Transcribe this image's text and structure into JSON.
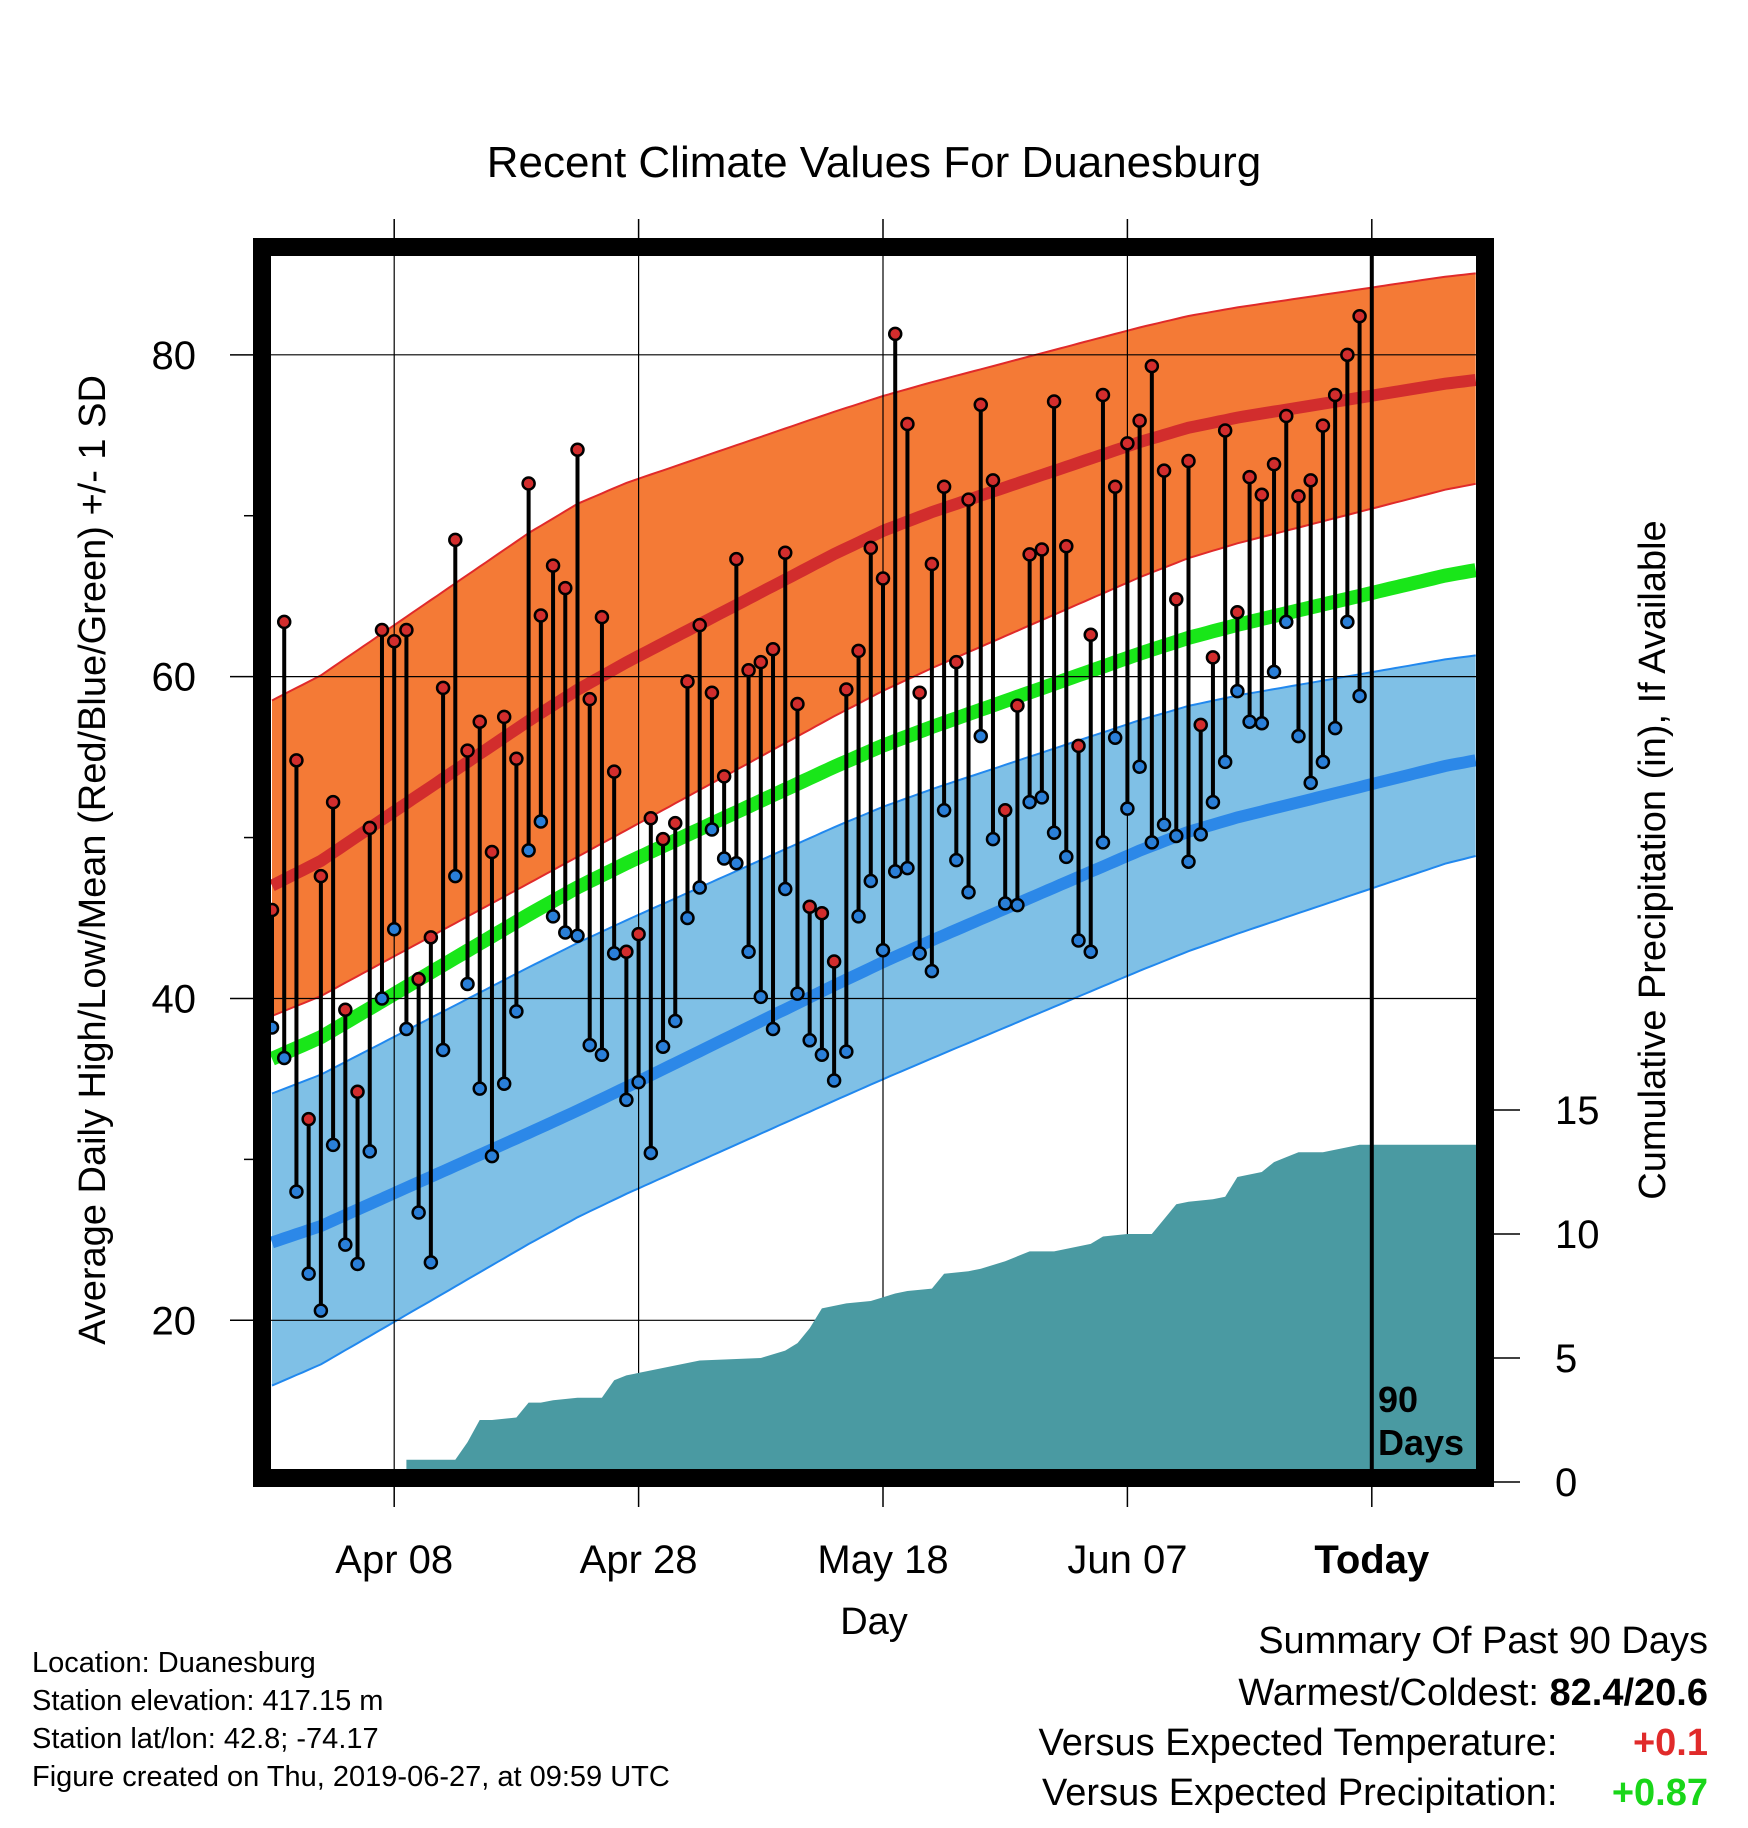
{
  "chart_data": {
    "type": "line",
    "title": "Recent Climate Values For Duanesburg",
    "xlabel": "Day",
    "ylabel": "Average Daily High/Low/Mean (Red/Blue/Green) +/- 1 SD",
    "y2label": "Cumulative Precipitation (in), If Available",
    "xticks": [
      {
        "day": 10,
        "label": "Apr 08"
      },
      {
        "day": 30,
        "label": "Apr 28"
      },
      {
        "day": 50,
        "label": "May 18"
      },
      {
        "day": 70,
        "label": "Jun 07"
      },
      {
        "day": 90,
        "label": "Today"
      }
    ],
    "yticks": [
      20,
      40,
      60,
      80
    ],
    "y2ticks": [
      0,
      5,
      10,
      15
    ],
    "ylim": [
      10.2,
      86.7
    ],
    "y2lim": [
      0,
      15
    ],
    "xlim": [
      0,
      100
    ],
    "today_day": 90,
    "today_label_line1": "90",
    "today_label_line2": "Days",
    "colors": {
      "high_band": "#f47a36",
      "high_mean": "#d22d2d",
      "high_edge": "#e02a2a",
      "low_band": "#7fc0e6",
      "low_mean": "#2c88e8",
      "low_edge": "#2188ee",
      "mean": "#19e619",
      "precip": "#4a9aa2",
      "high_point": "#d22d2d",
      "low_point": "#2a7fd8"
    },
    "normal_high": {
      "day": [
        0,
        25,
        50,
        75,
        100
      ],
      "values": [
        46.5,
        59.3,
        69.2,
        75.6,
        78.7
      ]
    },
    "normal_high_upper": {
      "day": [
        0,
        25,
        50,
        75,
        100
      ],
      "values": [
        58.0,
        71.0,
        77.5,
        82.5,
        85.3
      ]
    },
    "normal_high_lower": {
      "day": [
        0,
        25,
        50,
        75,
        100
      ],
      "values": [
        38.5,
        48.8,
        59.2,
        67.5,
        72.4
      ]
    },
    "normal_mean": {
      "day": [
        0,
        25,
        50,
        75,
        100
      ],
      "values": [
        35.8,
        47.0,
        55.8,
        62.5,
        67.0
      ]
    },
    "normal_low": {
      "day": [
        0,
        25,
        50,
        75,
        100
      ],
      "values": [
        24.5,
        33.0,
        42.3,
        50.5,
        55.2
      ]
    },
    "normal_low_upper": {
      "day": [
        0,
        25,
        50,
        75,
        100
      ],
      "values": [
        33.7,
        43.5,
        52.0,
        58.3,
        61.6
      ]
    },
    "normal_low_lower": {
      "day": [
        0,
        25,
        50,
        75,
        100
      ],
      "values": [
        15.5,
        26.5,
        35.0,
        43.0,
        49.4
      ]
    },
    "daily": [
      {
        "day": 0,
        "high": 45.5,
        "low": 38.2
      },
      {
        "day": 1,
        "high": 63.4,
        "low": 36.3
      },
      {
        "day": 2,
        "high": 54.8,
        "low": 28.0
      },
      {
        "day": 3,
        "high": 32.5,
        "low": 22.9
      },
      {
        "day": 4,
        "high": 47.6,
        "low": 20.6
      },
      {
        "day": 5,
        "high": 52.2,
        "low": 30.9
      },
      {
        "day": 6,
        "high": 39.3,
        "low": 24.7
      },
      {
        "day": 7,
        "high": 34.2,
        "low": 23.5
      },
      {
        "day": 8,
        "high": 50.6,
        "low": 30.5
      },
      {
        "day": 9,
        "high": 62.9,
        "low": 40.0
      },
      {
        "day": 10,
        "high": 62.2,
        "low": 44.3
      },
      {
        "day": 11,
        "high": 62.9,
        "low": 38.1
      },
      {
        "day": 12,
        "high": 41.2,
        "low": 26.7
      },
      {
        "day": 13,
        "high": 43.8,
        "low": 23.6
      },
      {
        "day": 14,
        "high": 59.3,
        "low": 36.8
      },
      {
        "day": 15,
        "high": 68.5,
        "low": 47.6
      },
      {
        "day": 16,
        "high": 55.4,
        "low": 40.9
      },
      {
        "day": 17,
        "high": 57.2,
        "low": 34.4
      },
      {
        "day": 18,
        "high": 49.1,
        "low": 30.2
      },
      {
        "day": 19,
        "high": 57.5,
        "low": 34.7
      },
      {
        "day": 20,
        "high": 54.9,
        "low": 39.2
      },
      {
        "day": 21,
        "high": 72.0,
        "low": 49.2
      },
      {
        "day": 22,
        "high": 63.8,
        "low": 51.0
      },
      {
        "day": 23,
        "high": 66.9,
        "low": 45.1
      },
      {
        "day": 24,
        "high": 65.5,
        "low": 44.1
      },
      {
        "day": 25,
        "high": 74.1,
        "low": 43.9
      },
      {
        "day": 26,
        "high": 58.6,
        "low": 37.1
      },
      {
        "day": 27,
        "high": 63.7,
        "low": 36.5
      },
      {
        "day": 28,
        "high": 54.1,
        "low": 42.8
      },
      {
        "day": 29,
        "high": 42.9,
        "low": 33.7
      },
      {
        "day": 30,
        "high": 44.0,
        "low": 34.8
      },
      {
        "day": 31,
        "high": 51.2,
        "low": 30.4
      },
      {
        "day": 32,
        "high": 49.9,
        "low": 37.0
      },
      {
        "day": 33,
        "high": 50.9,
        "low": 38.6
      },
      {
        "day": 34,
        "high": 59.7,
        "low": 45.0
      },
      {
        "day": 35,
        "high": 63.2,
        "low": 46.9
      },
      {
        "day": 36,
        "high": 59.0,
        "low": 50.5
      },
      {
        "day": 37,
        "high": 53.8,
        "low": 48.7
      },
      {
        "day": 38,
        "high": 67.3,
        "low": 48.4
      },
      {
        "day": 39,
        "high": 60.4,
        "low": 42.9
      },
      {
        "day": 40,
        "high": 60.9,
        "low": 40.1
      },
      {
        "day": 41,
        "high": 61.7,
        "low": 38.1
      },
      {
        "day": 42,
        "high": 67.7,
        "low": 46.8
      },
      {
        "day": 43,
        "high": 58.3,
        "low": 40.3
      },
      {
        "day": 44,
        "high": 45.7,
        "low": 37.4
      },
      {
        "day": 45,
        "high": 45.3,
        "low": 36.5
      },
      {
        "day": 46,
        "high": 42.3,
        "low": 34.9
      },
      {
        "day": 47,
        "high": 59.2,
        "low": 36.7
      },
      {
        "day": 48,
        "high": 61.6,
        "low": 45.1
      },
      {
        "day": 49,
        "high": 68.0,
        "low": 47.3
      },
      {
        "day": 50,
        "high": 66.1,
        "low": 43.0
      },
      {
        "day": 51,
        "high": 81.3,
        "low": 47.9
      },
      {
        "day": 52,
        "high": 75.7,
        "low": 48.1
      },
      {
        "day": 53,
        "high": 59.0,
        "low": 42.8
      },
      {
        "day": 54,
        "high": 67.0,
        "low": 41.7
      },
      {
        "day": 55,
        "high": 71.8,
        "low": 51.7
      },
      {
        "day": 56,
        "high": 60.9,
        "low": 48.6
      },
      {
        "day": 57,
        "high": 71.0,
        "low": 46.6
      },
      {
        "day": 58,
        "high": 76.9,
        "low": 56.3
      },
      {
        "day": 59,
        "high": 72.2,
        "low": 49.9
      },
      {
        "day": 60,
        "high": 51.7,
        "low": 45.9
      },
      {
        "day": 61,
        "high": 58.2,
        "low": 45.8
      },
      {
        "day": 62,
        "high": 67.6,
        "low": 52.2
      },
      {
        "day": 63,
        "high": 67.9,
        "low": 52.5
      },
      {
        "day": 64,
        "high": 77.1,
        "low": 50.3
      },
      {
        "day": 65,
        "high": 68.1,
        "low": 48.8
      },
      {
        "day": 66,
        "high": 55.7,
        "low": 43.6
      },
      {
        "day": 67,
        "high": 62.6,
        "low": 42.9
      },
      {
        "day": 68,
        "high": 77.5,
        "low": 49.7
      },
      {
        "day": 69,
        "high": 71.8,
        "low": 56.2
      },
      {
        "day": 70,
        "high": 74.5,
        "low": 51.8
      },
      {
        "day": 71,
        "high": 75.9,
        "low": 54.4
      },
      {
        "day": 72,
        "high": 79.3,
        "low": 49.7
      },
      {
        "day": 73,
        "high": 72.8,
        "low": 50.8
      },
      {
        "day": 74,
        "high": 64.8,
        "low": 50.1
      },
      {
        "day": 75,
        "high": 73.4,
        "low": 48.5
      },
      {
        "day": 76,
        "high": 57.0,
        "low": 50.2
      },
      {
        "day": 77,
        "high": 61.2,
        "low": 52.2
      },
      {
        "day": 78,
        "high": 75.3,
        "low": 54.7
      },
      {
        "day": 79,
        "high": 64.0,
        "low": 59.1
      },
      {
        "day": 80,
        "high": 72.4,
        "low": 57.2
      },
      {
        "day": 81,
        "high": 71.3,
        "low": 57.1
      },
      {
        "day": 82,
        "high": 73.2,
        "low": 60.3
      },
      {
        "day": 83,
        "high": 76.2,
        "low": 63.4
      },
      {
        "day": 84,
        "high": 71.2,
        "low": 56.3
      },
      {
        "day": 85,
        "high": 72.2,
        "low": 53.4
      },
      {
        "day": 86,
        "high": 75.6,
        "low": 54.7
      },
      {
        "day": 87,
        "high": 77.5,
        "low": 56.8
      },
      {
        "day": 88,
        "high": 80.0,
        "low": 63.4
      },
      {
        "day": 89,
        "high": 82.4,
        "low": 58.8
      }
    ],
    "cumulative_precip": {
      "day": [
        0,
        7,
        7,
        10,
        11,
        11,
        15,
        16,
        17,
        18,
        20,
        21,
        22,
        23,
        25,
        27,
        28,
        29,
        35,
        40,
        42,
        43,
        44,
        45,
        46,
        47,
        49,
        51,
        52,
        54,
        55,
        57,
        58,
        60,
        61,
        62,
        64,
        65,
        67,
        68,
        70,
        72,
        73,
        74,
        75,
        77,
        78,
        79,
        81,
        82,
        83,
        84,
        86,
        87,
        88,
        89,
        100
      ],
      "values": [
        0,
        0,
        0.15,
        0.15,
        0.45,
        0.9,
        0.9,
        1.6,
        2.5,
        2.5,
        2.6,
        3.2,
        3.2,
        3.3,
        3.4,
        3.4,
        4.1,
        4.3,
        4.9,
        5.0,
        5.3,
        5.6,
        6.2,
        7.0,
        7.1,
        7.2,
        7.3,
        7.6,
        7.7,
        7.8,
        8.4,
        8.5,
        8.6,
        8.9,
        9.1,
        9.3,
        9.3,
        9.4,
        9.6,
        9.9,
        10.0,
        10.0,
        10.6,
        11.2,
        11.3,
        11.4,
        11.5,
        12.3,
        12.5,
        12.9,
        13.1,
        13.3,
        13.3,
        13.4,
        13.5,
        13.6,
        13.6
      ]
    }
  },
  "footer": {
    "location": "Location: Duanesburg",
    "elevation": "Station elevation: 417.15 m",
    "latlon": "Station lat/lon: 42.8; -74.17",
    "created": "Figure created on Thu, 2019-06-27, at 09:59 UTC"
  },
  "summary": {
    "title": "Summary Of Past 90 Days",
    "warm_cold_label": "Warmest/Coldest:",
    "warm_cold_value": "82.4/20.6",
    "temp_label": "Versus Expected Temperature:",
    "temp_value": "+0.1",
    "precip_label": "Versus Expected Precipitation:",
    "precip_value": "+0.87"
  }
}
